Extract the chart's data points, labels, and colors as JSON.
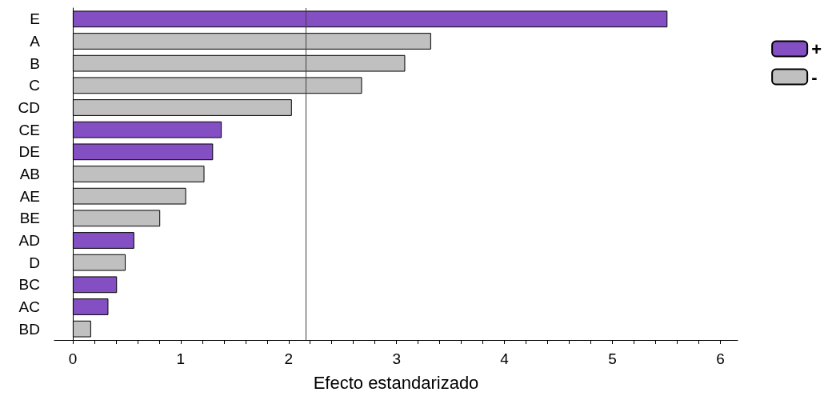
{
  "chart_data": {
    "type": "bar",
    "orientation": "horizontal",
    "stacked": true,
    "xlabel": "Efecto estandarizado",
    "categories": [
      "E",
      "A",
      "B",
      "C",
      "CD",
      "CE",
      "DE",
      "AB",
      "AE",
      "BE",
      "AD",
      "D",
      "BC",
      "AC",
      "BD"
    ],
    "series": [
      {
        "name": "+",
        "color": "#834fc3",
        "values": [
          5.51,
          null,
          null,
          null,
          null,
          1.38,
          1.3,
          null,
          null,
          null,
          0.57,
          null,
          0.41,
          0.33,
          null
        ]
      },
      {
        "name": "-",
        "color": "#c0c0c0",
        "values": [
          null,
          3.32,
          3.08,
          2.68,
          2.03,
          null,
          null,
          1.22,
          1.05,
          0.81,
          null,
          0.49,
          null,
          null,
          0.17
        ]
      }
    ],
    "xlim": [
      -0.17,
      6.16
    ],
    "xticks": [
      0,
      {
        "value": 0.2,
        "label": null
      },
      {
        "value": 0.4,
        "label": null
      },
      {
        "value": 0.6,
        "label": null
      },
      {
        "value": 0.8,
        "label": null
      },
      1,
      {
        "value": 1.2,
        "label": null
      },
      {
        "value": 1.4,
        "label": null
      },
      {
        "value": 1.6,
        "label": null
      },
      {
        "value": 1.8,
        "label": null
      },
      2,
      {
        "value": 2.2,
        "label": null
      },
      {
        "value": 2.4,
        "label": null
      },
      {
        "value": 2.6,
        "label": null
      },
      {
        "value": 2.8,
        "label": null
      },
      3,
      {
        "value": 3.2,
        "label": null
      },
      {
        "value": 3.4,
        "label": null
      },
      {
        "value": 3.6,
        "label": null
      },
      {
        "value": 3.8,
        "label": null
      },
      4,
      {
        "value": 4.2,
        "label": null
      },
      {
        "value": 4.4,
        "label": null
      },
      {
        "value": 4.6,
        "label": null
      },
      {
        "value": 4.8,
        "label": null
      },
      5,
      {
        "value": 5.2,
        "label": null
      },
      {
        "value": 5.4,
        "label": null
      },
      {
        "value": 5.6,
        "label": null
      },
      {
        "value": 5.8,
        "label": null
      },
      6
    ],
    "ref_lines": [
      {
        "axis": "x",
        "value": 2.16,
        "color": "#404040"
      }
    ],
    "grid": false,
    "legend": "top right"
  }
}
